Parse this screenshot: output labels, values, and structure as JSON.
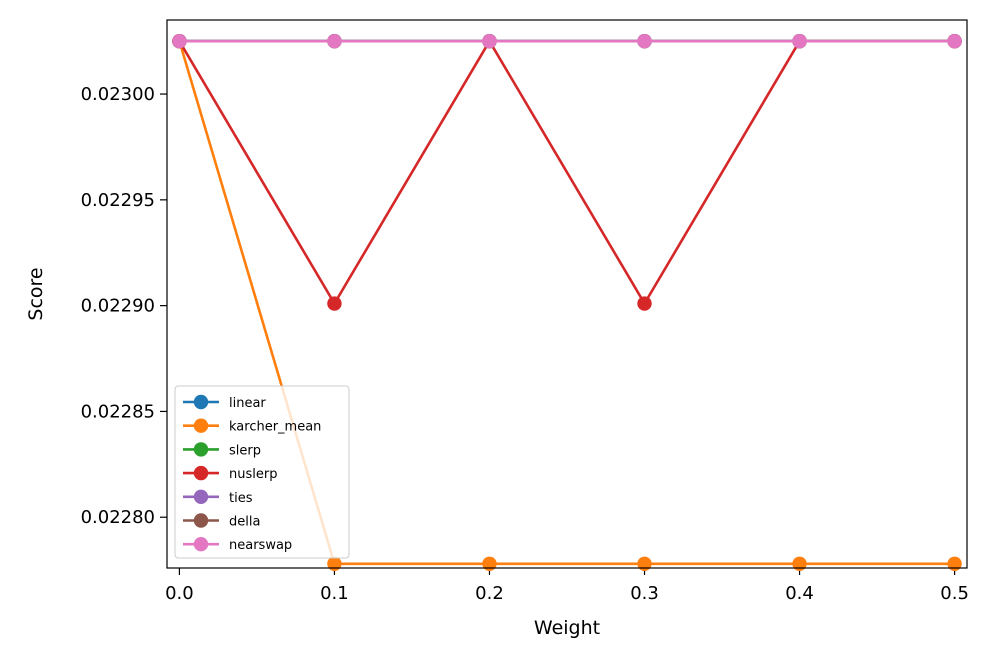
{
  "chart_data": {
    "type": "line",
    "title": "",
    "xlabel": "Weight",
    "ylabel": "Score",
    "x": [
      0.0,
      0.1,
      0.2,
      0.3,
      0.4,
      0.5
    ],
    "xlim": [
      -0.008,
      0.508
    ],
    "ylim": [
      0.022776,
      0.023035
    ],
    "xticks": [
      0.0,
      0.1,
      0.2,
      0.3,
      0.4,
      0.5
    ],
    "xtick_labels": [
      "0.0",
      "0.1",
      "0.2",
      "0.3",
      "0.4",
      "0.5"
    ],
    "yticks": [
      0.0228,
      0.02285,
      0.0229,
      0.02295,
      0.023
    ],
    "ytick_labels": [
      "0.02280",
      "0.02285",
      "0.02290",
      "0.02295",
      "0.02300"
    ],
    "grid": false,
    "legend_position": "lower-left",
    "series": [
      {
        "name": "linear",
        "color": "#1f77b4",
        "values": [
          0.023025,
          0.023025,
          0.023025,
          0.023025,
          0.023025,
          0.023025
        ]
      },
      {
        "name": "karcher_mean",
        "color": "#ff7f0e",
        "values": [
          0.023025,
          0.022778,
          0.022778,
          0.022778,
          0.022778,
          0.022778
        ]
      },
      {
        "name": "slerp",
        "color": "#2ca02c",
        "values": [
          0.023025,
          0.023025,
          0.023025,
          0.023025,
          0.023025,
          0.023025
        ]
      },
      {
        "name": "nuslerp",
        "color": "#d62728",
        "values": [
          0.023025,
          0.022901,
          0.023025,
          0.022901,
          0.023025,
          0.023025
        ]
      },
      {
        "name": "ties",
        "color": "#9467bd",
        "values": [
          0.023025,
          0.023025,
          0.023025,
          0.023025,
          0.023025,
          0.023025
        ]
      },
      {
        "name": "della",
        "color": "#8c564b",
        "values": [
          0.023025,
          0.023025,
          0.023025,
          0.023025,
          0.023025,
          0.023025
        ]
      },
      {
        "name": "nearswap",
        "color": "#e377c2",
        "values": [
          0.023025,
          0.023025,
          0.023025,
          0.023025,
          0.023025,
          0.023025
        ]
      }
    ]
  }
}
